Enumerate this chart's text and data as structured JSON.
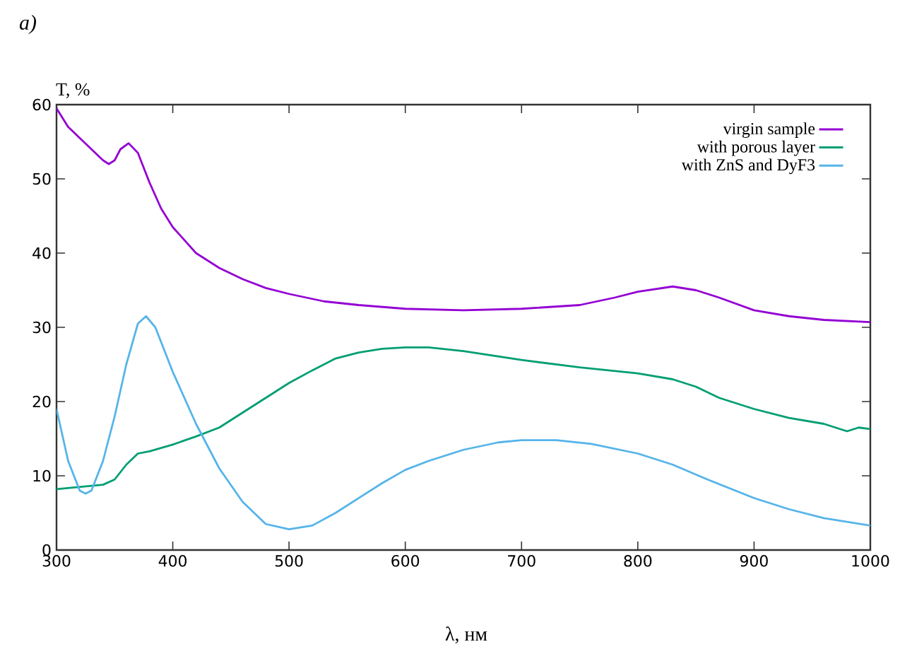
{
  "chart_data": {
    "type": "line",
    "xlabel": "λ, нм",
    "ylabel": "T, %",
    "annotations": [
      "*a)*"
    ],
    "xlim": [
      300,
      1000
    ],
    "ylim": [
      0,
      60
    ],
    "xticks": [
      300,
      400,
      500,
      600,
      700,
      800,
      900,
      1000
    ],
    "yticks": [
      0,
      10,
      20,
      30,
      40,
      50,
      60
    ],
    "legend": "top right",
    "marker": "none",
    "line_style": "solid",
    "grid": false,
    "series": [
      {
        "name": "virgin sample",
        "color": "#9400d3",
        "x": [
          300,
          310,
          320,
          330,
          340,
          345,
          350,
          355,
          362,
          370,
          380,
          390,
          400,
          420,
          440,
          460,
          480,
          500,
          530,
          560,
          600,
          650,
          700,
          750,
          780,
          800,
          830,
          850,
          870,
          900,
          930,
          960,
          1000
        ],
        "values": [
          59.5,
          57,
          55.5,
          54,
          52.5,
          52,
          52.5,
          54,
          54.8,
          53.5,
          49.5,
          46,
          43.5,
          40,
          38,
          36.5,
          35.3,
          34.5,
          33.5,
          33,
          32.5,
          32.3,
          32.5,
          33,
          34,
          34.8,
          35.5,
          35,
          34,
          32.3,
          31.5,
          31,
          30.7
        ]
      },
      {
        "name": "with porous layer",
        "color": "#009e73",
        "x": [
          300,
          320,
          340,
          350,
          360,
          370,
          380,
          400,
          420,
          440,
          460,
          480,
          500,
          520,
          540,
          560,
          580,
          600,
          620,
          650,
          700,
          750,
          800,
          830,
          850,
          870,
          900,
          930,
          960,
          980,
          990,
          1000
        ],
        "values": [
          8.2,
          8.5,
          8.8,
          9.5,
          11.5,
          13,
          13.3,
          14.2,
          15.3,
          16.5,
          18.5,
          20.5,
          22.5,
          24.2,
          25.8,
          26.6,
          27.1,
          27.3,
          27.3,
          26.8,
          25.6,
          24.6,
          23.8,
          23,
          22,
          20.5,
          19,
          17.8,
          17,
          16,
          16.5,
          16.3
        ]
      },
      {
        "name": "with ZnS and DyF3",
        "color": "#56b4e9",
        "x": [
          300,
          310,
          320,
          325,
          330,
          340,
          350,
          360,
          370,
          377,
          385,
          400,
          420,
          440,
          460,
          480,
          500,
          520,
          540,
          560,
          580,
          600,
          620,
          650,
          680,
          700,
          730,
          760,
          800,
          830,
          860,
          900,
          930,
          960,
          1000
        ],
        "values": [
          19,
          12,
          8,
          7.6,
          8,
          12,
          18,
          25,
          30.5,
          31.5,
          30,
          24,
          17,
          11,
          6.5,
          3.5,
          2.8,
          3.3,
          5,
          7,
          9,
          10.8,
          12,
          13.5,
          14.5,
          14.8,
          14.8,
          14.3,
          13,
          11.5,
          9.5,
          7,
          5.5,
          4.3,
          3.3
        ]
      }
    ]
  }
}
